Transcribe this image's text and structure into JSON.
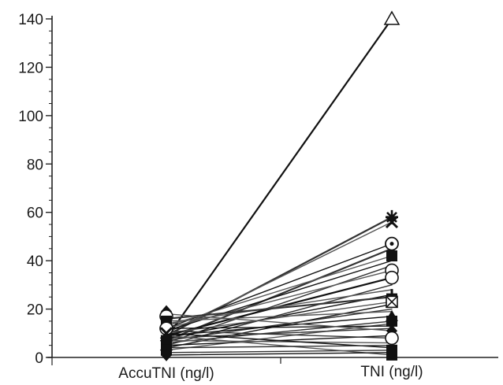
{
  "chart_data": {
    "type": "line",
    "title": "",
    "xlabel": "",
    "ylabel": "",
    "categories": [
      "AccuTNI (ng/l)",
      "TNI (ng/l)"
    ],
    "ylim": [
      0,
      140
    ],
    "yticks": [
      0,
      20,
      40,
      60,
      80,
      100,
      120,
      140
    ],
    "grid": false,
    "legend": "none",
    "series": [
      {
        "values": [
          8,
          140
        ],
        "marker": "triangle-open"
      },
      {
        "values": [
          9,
          58
        ],
        "marker": "star"
      },
      {
        "values": [
          10,
          56
        ],
        "marker": "x"
      },
      {
        "values": [
          12,
          47
        ],
        "marker": "circle-dot"
      },
      {
        "values": [
          7,
          45
        ],
        "marker": "none"
      },
      {
        "values": [
          13,
          42
        ],
        "marker": "square"
      },
      {
        "values": [
          11,
          40
        ],
        "marker": "none"
      },
      {
        "values": [
          6,
          38
        ],
        "marker": "none"
      },
      {
        "values": [
          12,
          36
        ],
        "marker": "circle-open"
      },
      {
        "values": [
          9,
          33
        ],
        "marker": "circle-open"
      },
      {
        "values": [
          5,
          30
        ],
        "marker": "none"
      },
      {
        "values": [
          14,
          28
        ],
        "marker": "none"
      },
      {
        "values": [
          8,
          26
        ],
        "marker": "plus"
      },
      {
        "values": [
          16,
          25
        ],
        "marker": "none"
      },
      {
        "values": [
          10,
          23
        ],
        "marker": "x-box"
      },
      {
        "values": [
          4,
          22
        ],
        "marker": "none"
      },
      {
        "values": [
          7,
          20
        ],
        "marker": "none"
      },
      {
        "values": [
          15,
          19
        ],
        "marker": "none"
      },
      {
        "values": [
          9,
          17
        ],
        "marker": "triangle"
      },
      {
        "values": [
          6,
          15
        ],
        "marker": "square"
      },
      {
        "values": [
          3,
          14
        ],
        "marker": "none"
      },
      {
        "values": [
          12,
          13
        ],
        "marker": "none"
      },
      {
        "values": [
          8,
          12
        ],
        "marker": "none"
      },
      {
        "values": [
          18,
          11
        ],
        "marker": "diamond"
      },
      {
        "values": [
          5,
          9
        ],
        "marker": "none"
      },
      {
        "values": [
          11,
          8
        ],
        "marker": "circle-open"
      },
      {
        "values": [
          7,
          6
        ],
        "marker": "none"
      },
      {
        "values": [
          10,
          4
        ],
        "marker": "none"
      },
      {
        "values": [
          2,
          3
        ],
        "marker": "square"
      },
      {
        "values": [
          9,
          1
        ],
        "marker": "square"
      },
      {
        "values": [
          1,
          2
        ],
        "marker": "diamond"
      },
      {
        "values": [
          4,
          5
        ],
        "marker": "none"
      }
    ],
    "left_markers": [
      {
        "value": 19,
        "marker": "diamond"
      },
      {
        "value": 17,
        "marker": "circle-open"
      },
      {
        "value": 15,
        "marker": "square"
      },
      {
        "value": 12,
        "marker": "circle-open"
      },
      {
        "value": 10,
        "marker": "x"
      },
      {
        "value": 7,
        "marker": "square"
      },
      {
        "value": 5,
        "marker": "x"
      },
      {
        "value": 3,
        "marker": "square"
      },
      {
        "value": 1,
        "marker": "diamond"
      }
    ]
  }
}
